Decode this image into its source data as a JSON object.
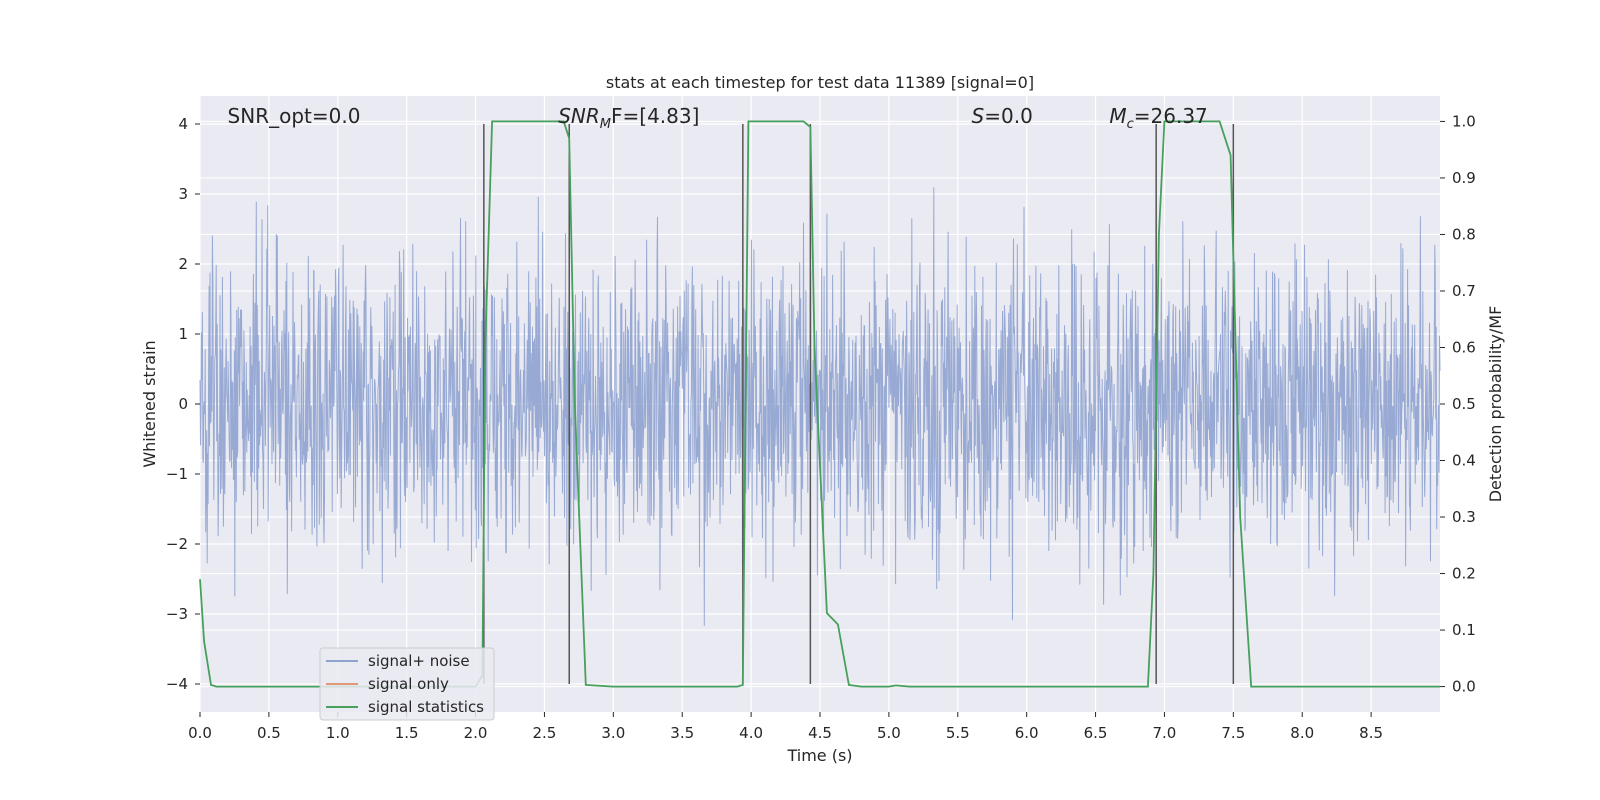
{
  "chart_data": {
    "type": "line",
    "title": "stats at each timestep for test data 11389 [signal=0]",
    "xlabel": "Time (s)",
    "ylabel": "Whitened strain",
    "y2label": "Detection probability/MF",
    "xlim": [
      0.0,
      9.0
    ],
    "ylim": [
      -4.4,
      4.4
    ],
    "y2lim": [
      -0.045,
      1.045
    ],
    "xticks": [
      0.0,
      0.5,
      1.0,
      1.5,
      2.0,
      2.5,
      3.0,
      3.5,
      4.0,
      4.5,
      5.0,
      5.5,
      6.0,
      6.5,
      7.0,
      7.5,
      8.0,
      8.5
    ],
    "xticklabels": [
      "0.0",
      "0.5",
      "1.0",
      "1.5",
      "2.0",
      "2.5",
      "3.0",
      "3.5",
      "4.0",
      "4.5",
      "5.0",
      "5.5",
      "6.0",
      "6.5",
      "7.0",
      "7.5",
      "8.0",
      "8.5"
    ],
    "yticks": [
      4,
      3,
      2,
      1,
      0,
      -1,
      -2,
      -3,
      -4
    ],
    "yticklabels": [
      "4",
      "3",
      "2",
      "1",
      "0",
      "−1",
      "−2",
      "−3",
      "−4"
    ],
    "y2ticks": [
      1.0,
      0.9,
      0.8,
      0.7,
      0.6,
      0.5,
      0.4,
      0.3,
      0.2,
      0.1,
      0.0
    ],
    "y2ticklabels": [
      "1.0",
      "0.9",
      "0.8",
      "0.7",
      "0.6",
      "0.5",
      "0.4",
      "0.3",
      "0.2",
      "0.1",
      "0.0"
    ],
    "grid": true,
    "legend_position": "lower-left",
    "annotations": [
      {
        "id": "snr-opt",
        "pre": "SNR_opt=0.0",
        "italic": "",
        "sub": "",
        "post": "",
        "x": 0.2
      },
      {
        "id": "snr-mf",
        "pre": "",
        "italic": "SNR",
        "sub": "M",
        "post": "F=[4.83]",
        "x": 2.6
      },
      {
        "id": "s-val",
        "pre": "",
        "italic": "S",
        "sub": "",
        "post": "=0.0",
        "x": 5.6
      },
      {
        "id": "mc-val",
        "pre": "",
        "italic": "M",
        "sub": "c",
        "post": "=26.37",
        "x": 6.6
      }
    ],
    "vertical_lines": [
      2.06,
      2.68,
      3.94,
      4.43,
      6.94,
      7.5
    ],
    "series": [
      {
        "name": "signal+ noise",
        "color": "#8fa3cf",
        "description": "whitened strain noise, amplitude roughly within -4 to 4"
      },
      {
        "name": "signal only",
        "color": "#e0987a"
      },
      {
        "name": "signal statistics",
        "color": "#47a05c",
        "x": [
          0.0,
          0.03,
          0.08,
          0.12,
          0.5,
          1.0,
          1.5,
          2.0,
          2.05,
          2.07,
          2.12,
          2.5,
          2.64,
          2.68,
          2.72,
          2.8,
          3.0,
          3.5,
          3.9,
          3.94,
          3.98,
          4.05,
          4.38,
          4.43,
          4.46,
          4.55,
          4.63,
          4.71,
          4.8,
          5.0,
          5.05,
          5.15,
          5.5,
          6.0,
          6.5,
          6.88,
          6.92,
          6.96,
          7.0,
          7.05,
          7.4,
          7.48,
          7.55,
          7.63,
          8.0,
          8.5,
          9.0
        ],
        "values": [
          0.19,
          0.08,
          0.003,
          0.0,
          0.0,
          0.0,
          0.0,
          0.0,
          0.02,
          0.6,
          1.0,
          1.0,
          1.0,
          0.97,
          0.5,
          0.003,
          0.0,
          0.0,
          0.0,
          0.003,
          1.0,
          1.0,
          1.0,
          0.99,
          0.6,
          0.13,
          0.11,
          0.003,
          0.0,
          0.0,
          0.002,
          0.0,
          0.0,
          0.0,
          0.0,
          0.0,
          0.2,
          0.8,
          1.0,
          1.0,
          1.0,
          0.94,
          0.3,
          0.0,
          0.0,
          0.0,
          0.0
        ]
      }
    ]
  }
}
